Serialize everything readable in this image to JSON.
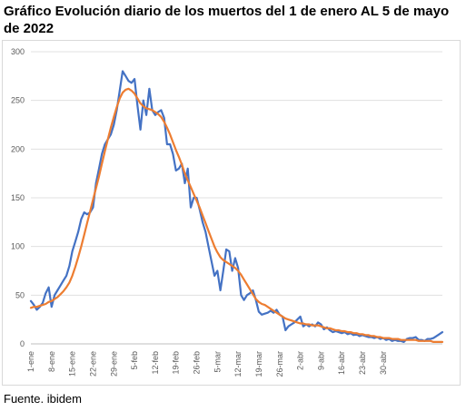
{
  "title": "Gráfico Evolución diario de los muertos del 1 de enero AL 5 de mayo de 2022",
  "source": "Fuente. ibidem",
  "chart_data": {
    "type": "line",
    "title": "Gráfico Evolución diario de los muertos del 1 de enero AL 5 de mayo de 2022",
    "xlabel": "",
    "ylabel": "",
    "ylim": [
      0,
      300
    ],
    "yticks": [
      0,
      50,
      100,
      150,
      200,
      250,
      300
    ],
    "xticks": [
      "1-ene",
      "8-ene",
      "15-ene",
      "22-ene",
      "29-ene",
      "5-feb",
      "12-feb",
      "19-feb",
      "26-feb",
      "5-mar",
      "12-mar",
      "19-mar",
      "26-mar",
      "2-abr",
      "9-abr",
      "16-abr",
      "23-abr",
      "30-abr"
    ],
    "grid": "horizontal",
    "legend": "none",
    "series": [
      {
        "color": "#4472c4",
        "values": [
          44,
          40,
          35,
          38,
          42,
          52,
          58,
          38,
          50,
          55,
          60,
          65,
          70,
          80,
          95,
          105,
          115,
          128,
          135,
          133,
          135,
          140,
          165,
          180,
          195,
          205,
          210,
          215,
          225,
          240,
          260,
          280,
          275,
          270,
          268,
          272,
          245,
          220,
          250,
          235,
          262,
          240,
          235,
          238,
          240,
          232,
          205,
          205,
          195,
          178,
          180,
          185,
          165,
          180,
          140,
          150,
          150,
          138,
          125,
          115,
          100,
          85,
          70,
          75,
          55,
          75,
          97,
          95,
          75,
          88,
          78,
          50,
          45,
          50,
          52,
          55,
          45,
          33,
          30,
          31,
          32,
          34,
          32,
          35,
          30,
          28,
          14,
          18,
          20,
          22,
          25,
          28,
          18,
          20,
          18,
          20,
          18,
          22,
          20,
          15,
          17,
          14,
          12,
          13,
          12,
          11,
          12,
          10,
          11,
          9,
          10,
          8,
          9,
          8,
          7,
          7,
          6,
          7,
          5,
          6,
          4,
          5,
          3,
          4,
          3,
          3,
          2,
          5,
          6,
          6,
          7,
          4,
          4,
          3,
          5,
          5,
          6,
          8,
          10,
          12
        ],
        "name": ""
      },
      {
        "color": "#ed7d31",
        "values": [
          37,
          38,
          38,
          39,
          40,
          41,
          43,
          44,
          46,
          48,
          51,
          54,
          58,
          63,
          70,
          79,
          89,
          100,
          112,
          124,
          136,
          148,
          160,
          172,
          185,
          198,
          210,
          222,
          233,
          243,
          252,
          258,
          261,
          262,
          260,
          257,
          252,
          247,
          244,
          242,
          241,
          240,
          238,
          236,
          233,
          228,
          222,
          215,
          207,
          199,
          192,
          184,
          175,
          168,
          161,
          154,
          147,
          140,
          132,
          124,
          116,
          108,
          100,
          94,
          89,
          86,
          84,
          82,
          80,
          78,
          75,
          71,
          66,
          61,
          56,
          51,
          46,
          43,
          41,
          40,
          38,
          36,
          34,
          32,
          30,
          28,
          26,
          25,
          24,
          23,
          22,
          21,
          21,
          20,
          20,
          19,
          19,
          19,
          18,
          17,
          16,
          16,
          15,
          14,
          14,
          13,
          13,
          12,
          12,
          11,
          11,
          10,
          10,
          9,
          9,
          8,
          8,
          7,
          7,
          6,
          6,
          6,
          5,
          5,
          5,
          4,
          4,
          4,
          4,
          4,
          4,
          3,
          3,
          3,
          3,
          3,
          2,
          2,
          2,
          2
        ],
        "name": ""
      }
    ]
  }
}
